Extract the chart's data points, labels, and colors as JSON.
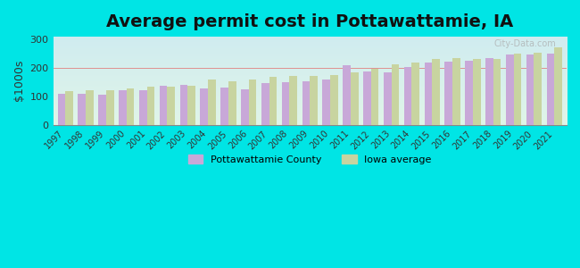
{
  "title": "Average permit cost in Pottawattamie, IA",
  "ylabel": "$1000s",
  "years": [
    1997,
    1998,
    1999,
    2000,
    2001,
    2002,
    2003,
    2004,
    2005,
    2006,
    2007,
    2008,
    2009,
    2010,
    2011,
    2012,
    2013,
    2014,
    2015,
    2016,
    2017,
    2018,
    2019,
    2020,
    2021
  ],
  "pottawattamie": [
    108,
    108,
    107,
    120,
    122,
    138,
    140,
    128,
    132,
    125,
    145,
    150,
    152,
    158,
    208,
    188,
    183,
    203,
    220,
    223,
    224,
    235,
    248,
    247,
    252
  ],
  "iowa_avg": [
    118,
    120,
    121,
    127,
    135,
    133,
    138,
    160,
    152,
    158,
    168,
    172,
    172,
    175,
    183,
    197,
    213,
    220,
    232,
    235,
    231,
    232,
    252,
    255,
    272
  ],
  "color_pott": "#c8a8d8",
  "color_iowa": "#c8d4a0",
  "bg_outer": "#00e5e5",
  "bg_plot_top": "#d8f0f0",
  "bg_plot_bottom": "#e8f5e0",
  "ylim": [
    0,
    310
  ],
  "yticks": [
    0,
    100,
    200,
    300
  ],
  "title_fontsize": 14,
  "bar_width": 0.38,
  "legend_label_pott": "Pottawattamie County",
  "legend_label_iowa": "Iowa average"
}
